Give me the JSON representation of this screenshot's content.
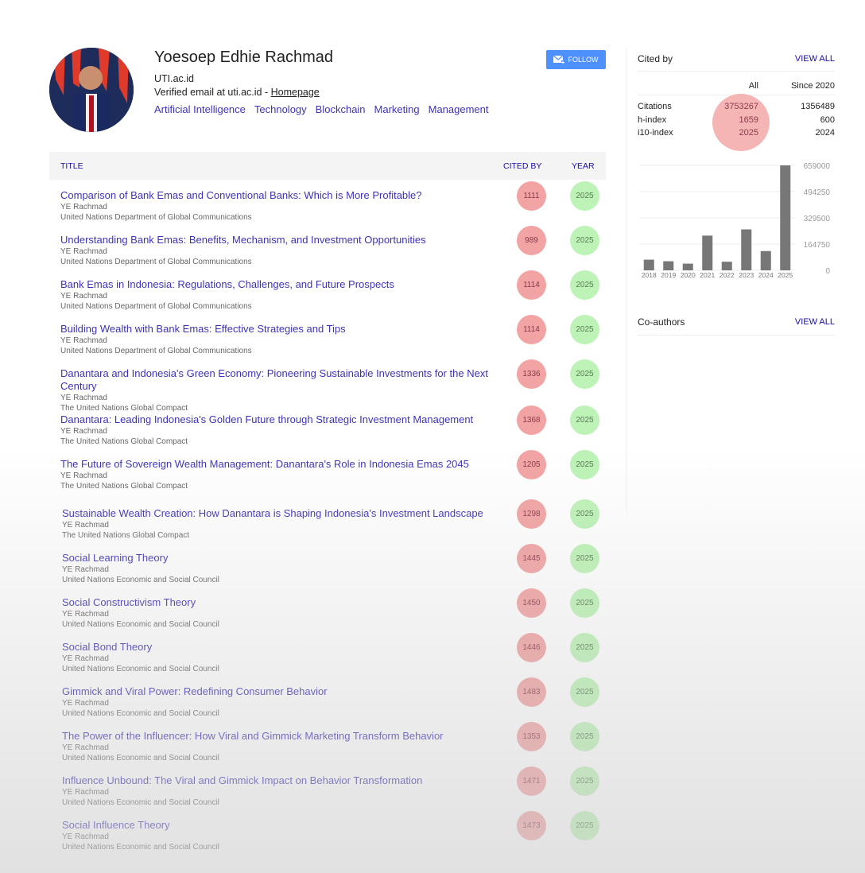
{
  "profile": {
    "name": "Yoesoep Edhie Rachmad",
    "affiliation": "UTI.ac.id",
    "email": "Verified email at uti.ac.id - ",
    "homepage": "Homepage",
    "interests": [
      "Artificial Intelligence",
      "Technology",
      "Blockchain",
      "Marketing",
      "Management"
    ],
    "follow": "FOLLOW"
  },
  "table": {
    "title": "TITLE",
    "cited_by": "CITED BY",
    "year": "YEAR"
  },
  "articles": [
    {
      "title": "Comparison of Bank Emas and Conventional Banks: Which is More Profitable?",
      "author": "YE Rachmad",
      "venue": "United Nations Department of Global Communications",
      "cited": "1111",
      "year": "2025"
    },
    {
      "title": "Understanding Bank Emas: Benefits, Mechanism, and Investment Opportunities",
      "author": "YE Rachmad",
      "venue": "United Nations Department of Global Communications",
      "cited": "989",
      "year": "2025"
    },
    {
      "title": "Bank Emas in Indonesia: Regulations, Challenges, and Future Prospects",
      "author": "YE Rachmad",
      "venue": "United Nations Department of Global Communications",
      "cited": "1114",
      "year": "2025"
    },
    {
      "title": "Building Wealth with Bank Emas: Effective Strategies and Tips",
      "author": "YE Rachmad",
      "venue": "United Nations Department of Global Communications",
      "cited": "1114",
      "year": "2025"
    },
    {
      "title": "Danantara and Indonesia's Green Economy: Pioneering Sustainable Investments for the Next Century",
      "author": "YE Rachmad",
      "venue": "The United Nations Global Compact",
      "cited": "1336",
      "year": "2025"
    },
    {
      "title": "Danantara: Leading Indonesia's Golden Future through Strategic Investment Management",
      "author": "YE Rachmad",
      "venue": "The United Nations Global Compact",
      "cited": "1368",
      "year": "2025"
    },
    {
      "title": "The Future of Sovereign Wealth Management: Danantara's Role in Indonesia Emas 2045",
      "author": "YE Rachmad",
      "venue": "The United Nations Global Compact",
      "cited": "1205",
      "year": "2025"
    },
    {
      "title": "Sustainable Wealth Creation: How Danantara is Shaping Indonesia's Investment Landscape",
      "author": "YE Rachmad",
      "venue": "The United Nations Global Compact",
      "cited": "1298",
      "year": "2025"
    },
    {
      "title": "Social Learning Theory",
      "author": "YE Rachmad",
      "venue": "United Nations Economic and Social Council",
      "cited": "1445",
      "year": "2025"
    },
    {
      "title": "Social Constructivism Theory",
      "author": "YE Rachmad",
      "venue": "United Nations Economic and Social Council",
      "cited": "1450",
      "year": "2025"
    },
    {
      "title": "Social Bond Theory",
      "author": "YE Rachmad",
      "venue": "United Nations Economic and Social Council",
      "cited": "1446",
      "year": "2025"
    },
    {
      "title": "Gimmick and Viral Power: Redefining Consumer Behavior",
      "author": "YE Rachmad",
      "venue": "United Nations Economic and Social Council",
      "cited": "1483",
      "year": "2025"
    },
    {
      "title": "The Power of the Influencer: How Viral and Gimmick Marketing Transform Behavior",
      "author": "YE Rachmad",
      "venue": "United Nations Economic and Social Council",
      "cited": "1353",
      "year": "2025"
    },
    {
      "title": "Influence Unbound: The Viral and Gimmick Impact on Behavior Transformation",
      "author": "YE Rachmad",
      "venue": "United Nations Economic and Social Council",
      "cited": "1471",
      "year": "2025"
    },
    {
      "title": "Social Influence Theory",
      "author": "YE Rachmad",
      "venue": "United Nations Economic and Social Council",
      "cited": "1473",
      "year": "2025"
    }
  ],
  "cited_by": {
    "title": "Cited by",
    "view_all": "VIEW ALL",
    "col_all": "All",
    "col_since": "Since 2020",
    "rows": [
      {
        "label": "Citations",
        "all": "3753267",
        "since": "1356489"
      },
      {
        "label": "h-index",
        "all": "1659",
        "since": "600"
      },
      {
        "label": "i10-index",
        "all": "2025",
        "since": "2024"
      }
    ]
  },
  "chart_data": {
    "type": "bar",
    "categories": [
      "2018",
      "2019",
      "2020",
      "2021",
      "2022",
      "2023",
      "2024",
      "2025"
    ],
    "values": [
      67000,
      57000,
      42000,
      218000,
      54000,
      257000,
      121000,
      659000
    ],
    "ylim": [
      0,
      659000
    ],
    "yticks": [
      "0",
      "164750",
      "329500",
      "494250",
      "659000"
    ],
    "grid": true,
    "bar_color": "#777777"
  },
  "coauthors": {
    "title": "Co-authors",
    "view_all": "VIEW ALL"
  }
}
